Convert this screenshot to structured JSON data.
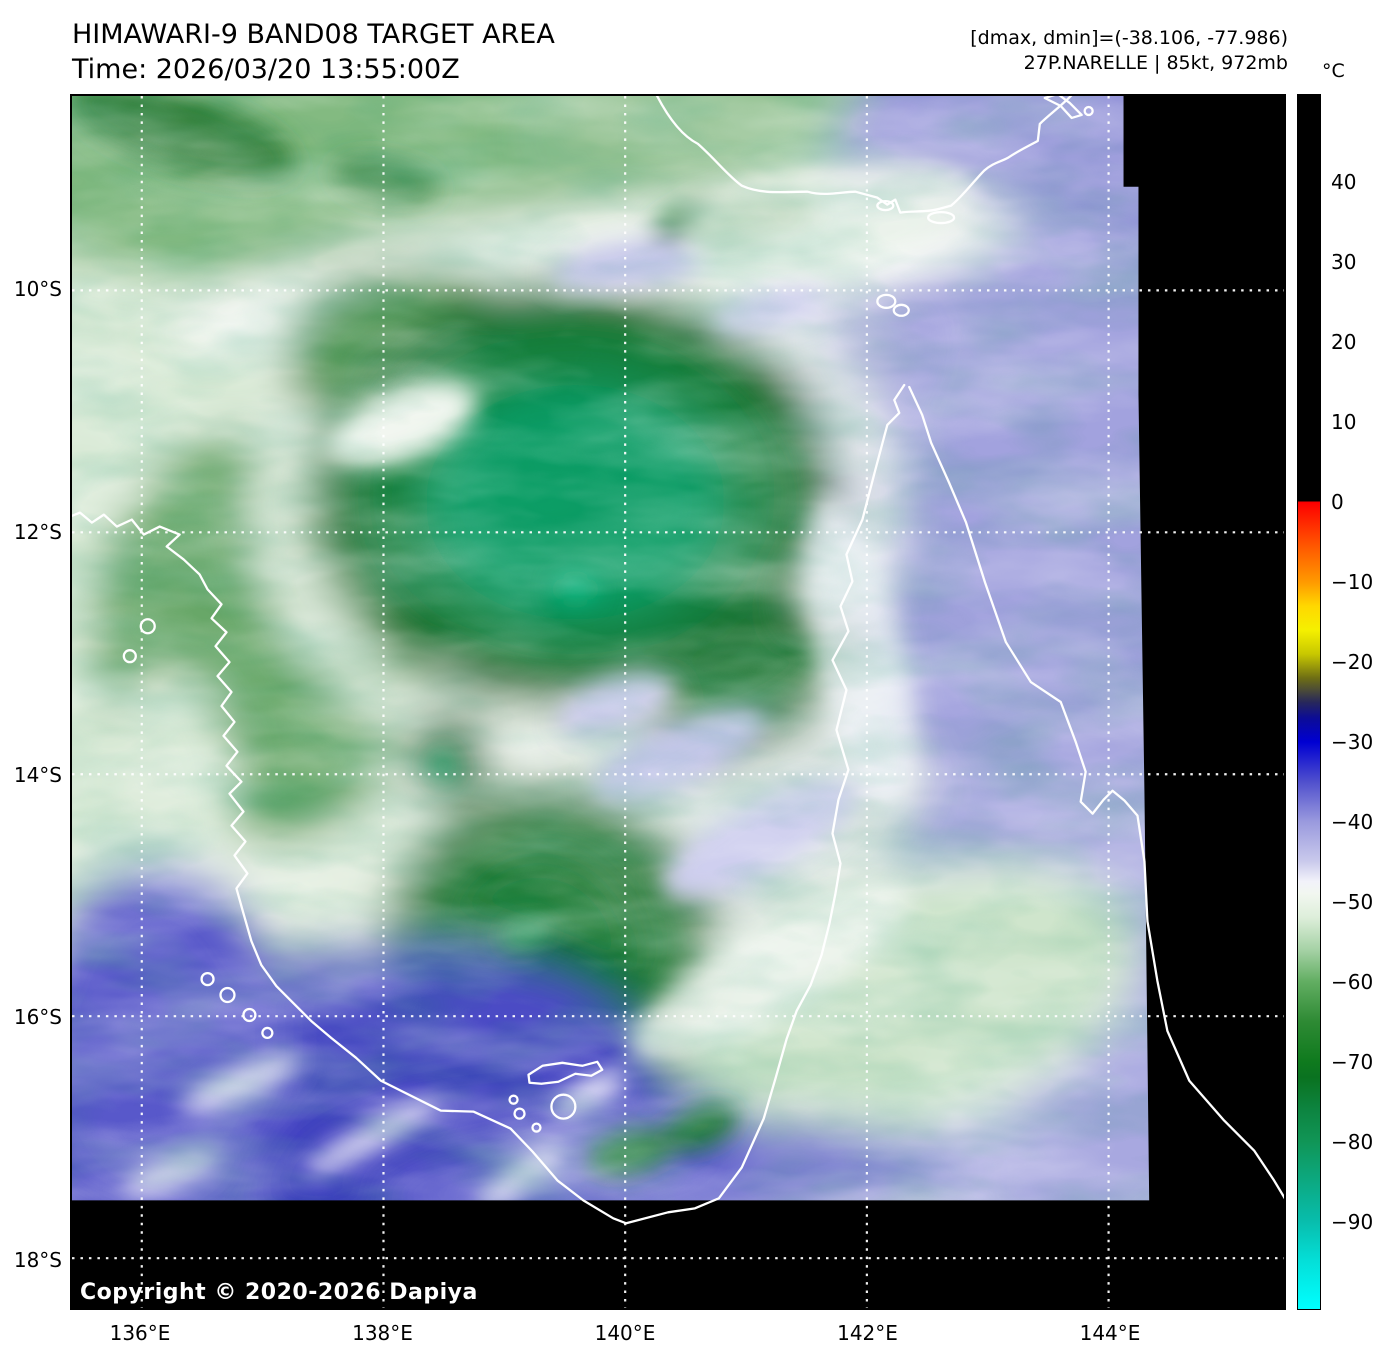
{
  "header": {
    "title": "HIMAWARI-9 BAND08 TARGET AREA",
    "time_line": "Time: 2026/03/20 13:55:00Z"
  },
  "annotations": {
    "range_line": "[dmax, dmin]=(-38.106, -77.986)",
    "storm_line": "27P.NARELLE | 85kt, 972mb"
  },
  "map": {
    "copyright": "Copyright © 2020-2026 Dapiya"
  },
  "axes": {
    "lat_ticks": [
      {
        "label": "10°S",
        "deg": 10
      },
      {
        "label": "12°S",
        "deg": 12
      },
      {
        "label": "14°S",
        "deg": 14
      },
      {
        "label": "16°S",
        "deg": 16
      },
      {
        "label": "18°S",
        "deg": 18
      }
    ],
    "lon_ticks": [
      {
        "label": "136°E",
        "deg": 136
      },
      {
        "label": "138°E",
        "deg": 138
      },
      {
        "label": "140°E",
        "deg": 140
      },
      {
        "label": "142°E",
        "deg": 142
      },
      {
        "label": "144°E",
        "deg": 144
      }
    ]
  },
  "colorbar": {
    "unit": "°C",
    "top_value": 51,
    "bottom_value": -101,
    "ticks": [
      {
        "label": "40",
        "value": 40
      },
      {
        "label": "30",
        "value": 30
      },
      {
        "label": "20",
        "value": 20
      },
      {
        "label": "10",
        "value": 10
      },
      {
        "label": "0",
        "value": 0
      },
      {
        "label": "−10",
        "value": -10
      },
      {
        "label": "−20",
        "value": -20
      },
      {
        "label": "−30",
        "value": -30
      },
      {
        "label": "−40",
        "value": -40
      },
      {
        "label": "−50",
        "value": -50
      },
      {
        "label": "−60",
        "value": -60
      },
      {
        "label": "−70",
        "value": -70
      },
      {
        "label": "−80",
        "value": -80
      },
      {
        "label": "−90",
        "value": -90
      }
    ],
    "stops": [
      {
        "t": 51,
        "color": "#000000"
      },
      {
        "t": 0.2,
        "color": "#000000"
      },
      {
        "t": 0,
        "color": "#fe0000"
      },
      {
        "t": -5,
        "color": "#ff5000"
      },
      {
        "t": -10,
        "color": "#ff9a00"
      },
      {
        "t": -13,
        "color": "#ffd800"
      },
      {
        "t": -16,
        "color": "#f5f000"
      },
      {
        "t": -19,
        "color": "#c8c800"
      },
      {
        "t": -22,
        "color": "#6e6e14"
      },
      {
        "t": -25,
        "color": "#28285a"
      },
      {
        "t": -27,
        "color": "#0c0c96"
      },
      {
        "t": -30,
        "color": "#0000d2"
      },
      {
        "t": -35,
        "color": "#5050cd"
      },
      {
        "t": -40,
        "color": "#9a9ade"
      },
      {
        "t": -45,
        "color": "#cacaec"
      },
      {
        "t": -47.5,
        "color": "#f2f2fa"
      },
      {
        "t": -49,
        "color": "#f2f7f0"
      },
      {
        "t": -52,
        "color": "#ddeeda"
      },
      {
        "t": -56,
        "color": "#a6d2a6"
      },
      {
        "t": -60,
        "color": "#62ae62"
      },
      {
        "t": -65,
        "color": "#2e8a34"
      },
      {
        "t": -70,
        "color": "#0f7a1e"
      },
      {
        "t": -72,
        "color": "#0a7220"
      },
      {
        "t": -76,
        "color": "#0d8440"
      },
      {
        "t": -80,
        "color": "#109556"
      },
      {
        "t": -85,
        "color": "#0ca981"
      },
      {
        "t": -90,
        "color": "#08bdac"
      },
      {
        "t": -95,
        "color": "#04dfd8"
      },
      {
        "t": -101,
        "color": "#00ffff"
      }
    ]
  },
  "palette": {
    "background_lavender": "#aeaede",
    "deep_blue_cloud": "#4040c0",
    "pale_green": "#d9ead6",
    "storm_core_green": "#0c9e66",
    "dark_green": "#157a2e",
    "no_data_black": "#000000",
    "coastline_white": "#ffffff"
  }
}
